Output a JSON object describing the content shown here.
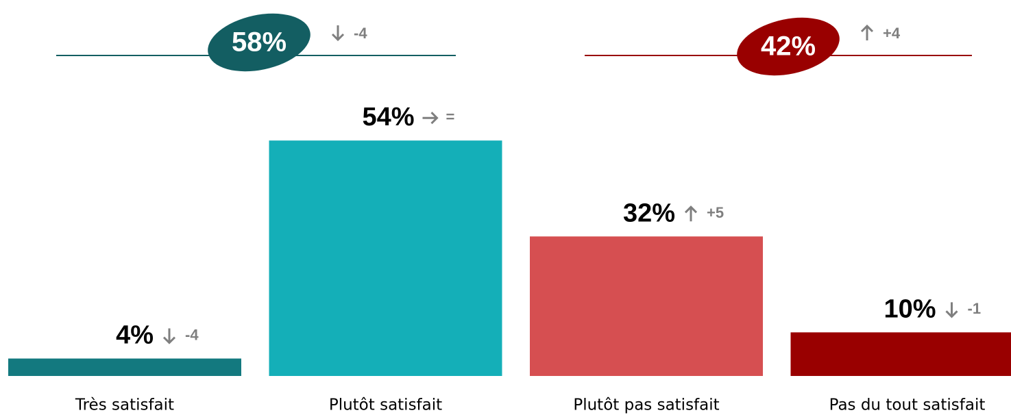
{
  "chart_data": {
    "type": "bar",
    "categories": [
      "Très satisfait",
      "Plutôt satisfait",
      "Plutôt pas satisfait",
      "Pas du tout satisfait"
    ],
    "values": [
      4,
      54,
      32,
      10
    ],
    "value_labels": [
      "4%",
      "54%",
      "32%",
      "10%"
    ],
    "change_labels": [
      "-4",
      "=",
      "+5",
      "-1"
    ],
    "colors": [
      "#13797f",
      "#14afb8",
      "#d64f51",
      "#990000"
    ],
    "ylim": [
      0,
      60
    ],
    "groups": [
      {
        "value": 58,
        "label": "58%",
        "change": "-4",
        "color": "#135e62"
      },
      {
        "value": 42,
        "label": "42%",
        "change": "+4",
        "color": "#990000"
      }
    ]
  }
}
